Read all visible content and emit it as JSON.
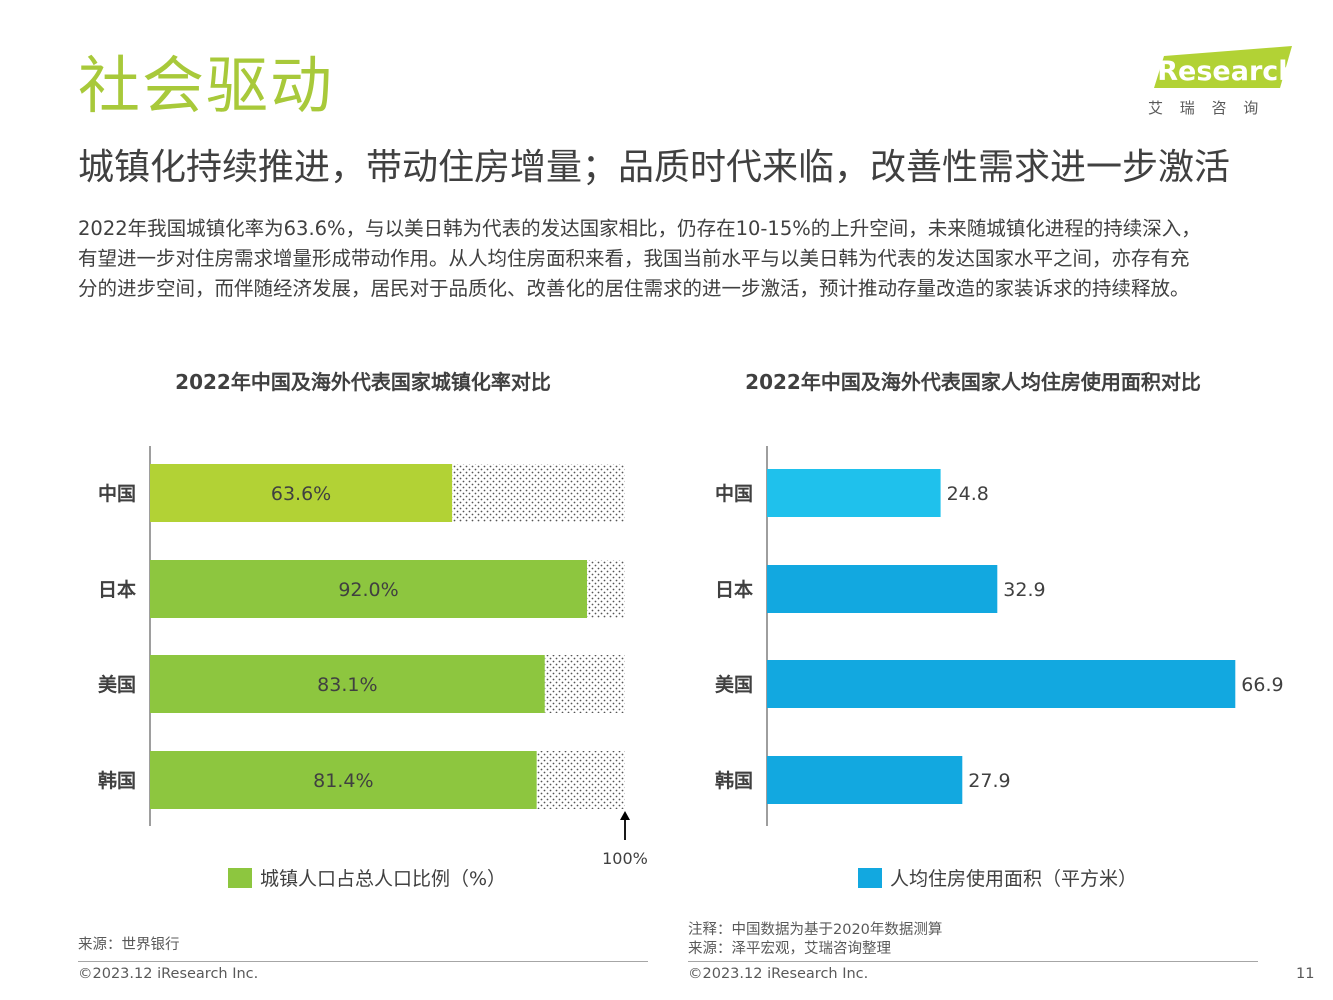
{
  "header": {
    "title": "社会驱动",
    "subtitle": "城镇化持续推进，带动住房增量；品质时代来临，改善性需求进一步激活",
    "logo_text": "iResearch",
    "logo_sub": "艾 瑞 咨 询"
  },
  "body": {
    "lines": [
      "2022年我国城镇化率为63.6%，与以美日韩为代表的发达国家相比，仍存在10-15%的上升空间，未来随城镇化进程的持续深入，",
      "有望进一步对住房需求增量形成带动作用。从人均住房面积来看，我国当前水平与以美日韩为代表的发达国家水平之间，亦存有充",
      "分的进步空间，而伴随经济发展，居民对于品质化、改善化的居住需求的进一步激活，预计推动存量改造的家装诉求的持续释放。"
    ]
  },
  "chart_data": [
    {
      "type": "bar",
      "orientation": "horizontal",
      "title": "2022年中国及海外代表国家城镇化率对比",
      "categories": [
        "中国",
        "日本",
        "美国",
        "韩国"
      ],
      "series": [
        {
          "name": "城镇人口占总人口比例（%）",
          "values": [
            63.6,
            92.0,
            83.1,
            81.4
          ],
          "labels": [
            "63.6%",
            "92.0%",
            "83.1%",
            "81.4%"
          ]
        }
      ],
      "xlim": [
        0,
        100
      ],
      "reference_label": "100%",
      "colors": [
        "#b2d235",
        "#8dc63f",
        "#8dc63f",
        "#8dc63f"
      ],
      "legend_color": "#8dc63f",
      "legend": "bottom"
    },
    {
      "type": "bar",
      "orientation": "horizontal",
      "title": "2022年中国及海外代表国家人均住房使用面积对比",
      "categories": [
        "中国",
        "日本",
        "美国",
        "韩国"
      ],
      "series": [
        {
          "name": "人均住房使用面积（平方米）",
          "values": [
            24.8,
            32.9,
            66.9,
            27.9
          ],
          "labels": [
            "24.8",
            "32.9",
            "66.9",
            "27.9"
          ]
        }
      ],
      "xlim": [
        0,
        70
      ],
      "colors": [
        "#1fc1ec",
        "#12a8e0",
        "#12a8e0",
        "#12a8e0"
      ],
      "legend_color": "#12a8e0",
      "legend": "bottom"
    }
  ],
  "notes": {
    "left_source": "来源：世界银行",
    "right_note": "注释：中国数据为基于2020年数据测算",
    "right_source": "来源：泽平宏观，艾瑞咨询整理"
  },
  "footer": {
    "left_copyright": "©2023.12 iResearch Inc.",
    "right_copyright": "©2023.12 iResearch Inc.",
    "page_number": "11"
  }
}
